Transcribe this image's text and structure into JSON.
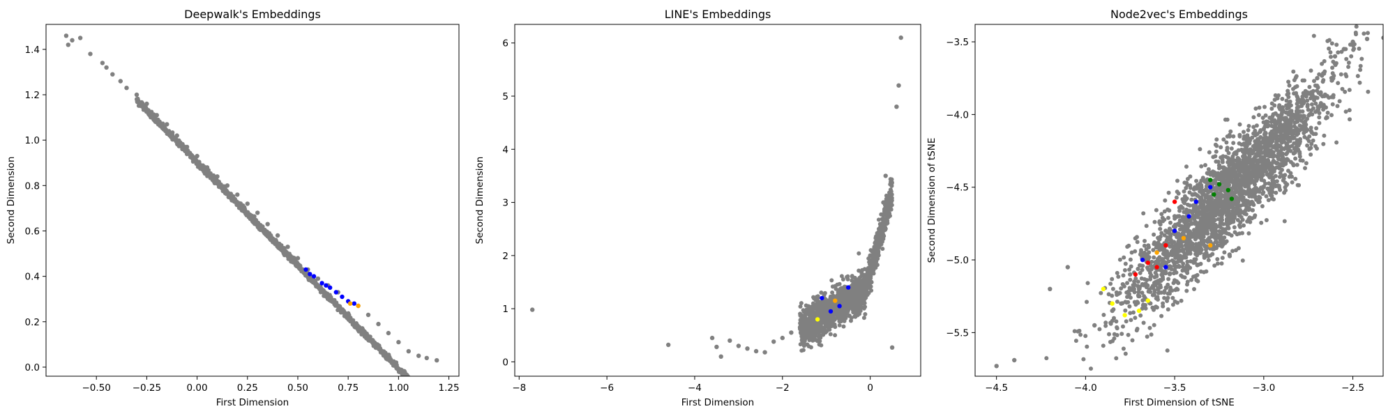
{
  "chart_data": [
    {
      "type": "scatter",
      "title": "Deepwalk's Embeddings",
      "xlabel": "First Dimension",
      "ylabel": "Second Dimension",
      "xlim": [
        -0.75,
        1.3
      ],
      "ylim": [
        -0.04,
        1.51
      ],
      "xticks": [
        -0.5,
        -0.25,
        0.0,
        0.25,
        0.5,
        0.75,
        1.0,
        1.25
      ],
      "xtick_labels": [
        "−0.50",
        "−0.25",
        "0.00",
        "0.25",
        "0.50",
        "0.75",
        "1.00",
        "1.25"
      ],
      "yticks": [
        0.0,
        0.2,
        0.4,
        0.6,
        0.8,
        1.0,
        1.2,
        1.4
      ],
      "ytick_labels": [
        "0.0",
        "0.2",
        "0.4",
        "0.6",
        "0.8",
        "1.0",
        "1.2",
        "1.4"
      ],
      "grid": false,
      "series": [
        {
          "color": "#808080",
          "points": [
            [
              -0.65,
              1.46
            ],
            [
              -0.62,
              1.44
            ],
            [
              -0.58,
              1.45
            ],
            [
              -0.64,
              1.42
            ],
            [
              -0.53,
              1.38
            ],
            [
              -0.47,
              1.34
            ],
            [
              -0.45,
              1.32
            ],
            [
              -0.42,
              1.29
            ],
            [
              -0.38,
              1.26
            ],
            [
              -0.35,
              1.23
            ],
            [
              -0.3,
              1.2
            ],
            [
              -0.25,
              1.16
            ],
            [
              -0.2,
              1.11
            ],
            [
              -0.15,
              1.07
            ],
            [
              -0.1,
              1.02
            ],
            [
              -0.05,
              0.97
            ],
            [
              0.0,
              0.93
            ],
            [
              0.05,
              0.88
            ],
            [
              0.1,
              0.84
            ],
            [
              0.15,
              0.8
            ],
            [
              0.2,
              0.76
            ],
            [
              0.25,
              0.72
            ],
            [
              0.3,
              0.68
            ],
            [
              0.35,
              0.63
            ],
            [
              0.4,
              0.58
            ],
            [
              0.45,
              0.53
            ],
            [
              0.5,
              0.48
            ],
            [
              0.55,
              0.43
            ],
            [
              0.6,
              0.39
            ],
            [
              0.65,
              0.36
            ],
            [
              0.7,
              0.33
            ],
            [
              0.8,
              0.27
            ],
            [
              0.85,
              0.23
            ],
            [
              0.9,
              0.19
            ],
            [
              0.95,
              0.15
            ],
            [
              1.0,
              0.11
            ],
            [
              1.05,
              0.07
            ],
            [
              1.1,
              0.05
            ],
            [
              1.14,
              0.04
            ],
            [
              1.19,
              0.03
            ]
          ]
        },
        {
          "color": "#0000ff",
          "points": [
            [
              0.54,
              0.43
            ],
            [
              0.58,
              0.4
            ],
            [
              0.62,
              0.37
            ],
            [
              0.66,
              0.35
            ],
            [
              0.69,
              0.33
            ],
            [
              0.72,
              0.31
            ],
            [
              0.75,
              0.29
            ],
            [
              0.78,
              0.28
            ],
            [
              0.56,
              0.41
            ],
            [
              0.64,
              0.36
            ]
          ]
        },
        {
          "color": "#ffa500",
          "points": [
            [
              0.76,
              0.28
            ],
            [
              0.8,
              0.27
            ]
          ]
        }
      ]
    },
    {
      "type": "scatter",
      "title": "LINE's Embeddings",
      "xlabel": "First Dimension",
      "ylabel": "Second Dimension",
      "xlim": [
        -8.1,
        1.15
      ],
      "ylim": [
        -0.27,
        6.35
      ],
      "xticks": [
        -8,
        -6,
        -4,
        -2,
        0
      ],
      "xtick_labels": [
        "−8",
        "−6",
        "−4",
        "−2",
        "0"
      ],
      "yticks": [
        0,
        1,
        2,
        3,
        4,
        5,
        6
      ],
      "ytick_labels": [
        "0",
        "1",
        "2",
        "3",
        "4",
        "5",
        "6"
      ],
      "grid": false,
      "series": [
        {
          "color": "#808080",
          "points": [
            [
              -7.7,
              0.98
            ],
            [
              -4.6,
              0.32
            ],
            [
              -3.6,
              0.45
            ],
            [
              -3.5,
              0.28
            ],
            [
              -3.4,
              0.1
            ],
            [
              -3.2,
              0.4
            ],
            [
              -3.0,
              0.3
            ],
            [
              -2.8,
              0.25
            ],
            [
              -2.6,
              0.2
            ],
            [
              -2.4,
              0.18
            ],
            [
              -2.2,
              0.38
            ],
            [
              -2.0,
              0.45
            ],
            [
              -1.8,
              0.55
            ],
            [
              -1.6,
              0.65
            ],
            [
              -1.4,
              0.8
            ],
            [
              -1.2,
              0.9
            ],
            [
              -1.0,
              1.0
            ],
            [
              -0.8,
              1.1
            ],
            [
              -0.6,
              1.25
            ],
            [
              -0.4,
              1.45
            ],
            [
              -0.2,
              1.7
            ],
            [
              0.0,
              2.0
            ],
            [
              0.2,
              2.5
            ],
            [
              0.3,
              3.0
            ],
            [
              0.35,
              3.5
            ],
            [
              0.5,
              0.27
            ],
            [
              0.6,
              4.8
            ],
            [
              0.65,
              5.2
            ],
            [
              0.7,
              6.1
            ]
          ]
        },
        {
          "color": "#0000ff",
          "points": [
            [
              -0.9,
              0.95
            ],
            [
              -0.7,
              1.05
            ],
            [
              -0.5,
              1.4
            ],
            [
              -1.1,
              1.2
            ]
          ]
        },
        {
          "color": "#ffa500",
          "points": [
            [
              -0.8,
              1.15
            ]
          ]
        },
        {
          "color": "#ffff00",
          "points": [
            [
              -1.2,
              0.8
            ]
          ]
        }
      ]
    },
    {
      "type": "scatter",
      "title": "Node2vec's Embeddings",
      "xlabel": "First Dimension of tSNE",
      "ylabel": "Second Dimension of tSNE",
      "xlim": [
        -4.62,
        -2.33
      ],
      "ylim": [
        -5.8,
        -3.38
      ],
      "xticks": [
        -4.5,
        -4.0,
        -3.5,
        -3.0,
        -2.5
      ],
      "xtick_labels": [
        "−4.5",
        "−4.0",
        "−3.5",
        "−3.0",
        "−2.5"
      ],
      "yticks": [
        -5.5,
        -5.0,
        -4.5,
        -4.0,
        -3.5
      ],
      "ytick_labels": [
        "−5.5",
        "−5.0",
        "−4.5",
        "−4.0",
        "−3.5"
      ],
      "grid": false,
      "series": [
        {
          "color": "#808080",
          "points": [
            [
              -4.5,
              -5.73
            ],
            [
              -4.4,
              -5.69
            ],
            [
              -4.2,
              -5.2
            ],
            [
              -4.1,
              -5.05
            ],
            [
              -3.95,
              -5.45
            ],
            [
              -3.85,
              -5.35
            ],
            [
              -3.8,
              -5.3
            ],
            [
              -3.75,
              -5.1
            ],
            [
              -3.7,
              -5.2
            ],
            [
              -3.65,
              -5.0
            ],
            [
              -3.6,
              -4.9
            ],
            [
              -3.55,
              -4.8
            ],
            [
              -3.5,
              -4.7
            ],
            [
              -3.45,
              -4.6
            ],
            [
              -3.4,
              -4.55
            ],
            [
              -3.35,
              -4.5
            ],
            [
              -3.3,
              -4.4
            ],
            [
              -3.25,
              -4.35
            ],
            [
              -3.2,
              -4.3
            ],
            [
              -3.1,
              -4.2
            ],
            [
              -3.0,
              -4.1
            ],
            [
              -2.9,
              -4.0
            ],
            [
              -2.8,
              -3.9
            ],
            [
              -2.7,
              -3.75
            ],
            [
              -2.6,
              -3.6
            ],
            [
              -2.5,
              -3.5
            ],
            [
              -2.42,
              -3.48
            ],
            [
              -2.55,
              -3.55
            ],
            [
              -2.6,
              -3.65
            ]
          ]
        },
        {
          "color": "#0000ff",
          "points": [
            [
              -3.68,
              -5.0
            ],
            [
              -3.55,
              -5.05
            ],
            [
              -3.5,
              -4.8
            ],
            [
              -3.42,
              -4.7
            ],
            [
              -3.38,
              -4.6
            ],
            [
              -3.3,
              -4.5
            ]
          ]
        },
        {
          "color": "#ff0000",
          "points": [
            [
              -3.72,
              -5.1
            ],
            [
              -3.65,
              -5.02
            ],
            [
              -3.6,
              -5.05
            ],
            [
              -3.55,
              -4.9
            ],
            [
              -3.5,
              -4.6
            ]
          ]
        },
        {
          "color": "#ffa500",
          "points": [
            [
              -3.6,
              -4.95
            ],
            [
              -3.45,
              -4.85
            ],
            [
              -3.3,
              -4.9
            ]
          ]
        },
        {
          "color": "#ffff00",
          "points": [
            [
              -3.9,
              -5.2
            ],
            [
              -3.85,
              -5.3
            ],
            [
              -3.78,
              -5.38
            ],
            [
              -3.7,
              -5.35
            ],
            [
              -3.65,
              -5.28
            ]
          ]
        },
        {
          "color": "#008000",
          "points": [
            [
              -3.3,
              -4.45
            ],
            [
              -3.28,
              -4.55
            ],
            [
              -3.25,
              -4.48
            ],
            [
              -3.2,
              -4.52
            ],
            [
              -3.18,
              -4.58
            ]
          ]
        }
      ]
    }
  ]
}
